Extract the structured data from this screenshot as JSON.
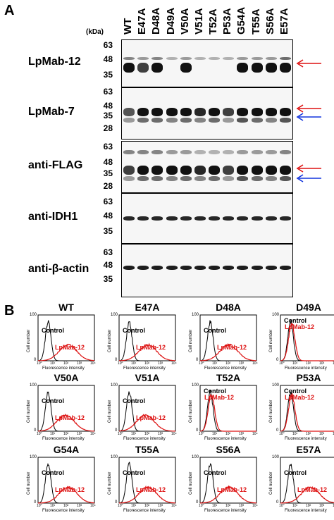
{
  "panel_a": {
    "letter": "A",
    "kda": "(kDa)",
    "lanes": [
      "WT",
      "E47A",
      "D48A",
      "D49A",
      "V50A",
      "V51A",
      "T52A",
      "P53A",
      "G54A",
      "T55A",
      "S56A",
      "E57A"
    ],
    "blots": [
      {
        "label": "LpMab-12",
        "markers": [
          "63",
          "48",
          "35"
        ]
      },
      {
        "label": "LpMab-7",
        "markers": [
          "63",
          "48",
          "35",
          "28"
        ]
      },
      {
        "label": "anti-FLAG",
        "markers": [
          "63",
          "48",
          "35",
          "28"
        ]
      },
      {
        "label": "anti-IDH1",
        "markers": [
          "63",
          "48",
          "35"
        ]
      },
      {
        "label": "anti-β-actin",
        "markers": [
          "63",
          "48",
          "35"
        ]
      }
    ]
  },
  "panel_b": {
    "letter": "B",
    "ylabel": "Cell number",
    "xlabel": "Fluorescence intensity",
    "control_label": "Control",
    "antibody_label": "LpMab-12",
    "ytick_labels": [
      "0",
      "100"
    ],
    "xtick_labels": [
      "10⁰",
      "10¹",
      "10²",
      "10³",
      "10⁴"
    ],
    "colors": {
      "control": "#000000",
      "antibody": "#dd1111",
      "arrow_red": "#dd1111",
      "arrow_blue": "#1133dd"
    },
    "plots": [
      {
        "title": "WT",
        "shift": 1.6
      },
      {
        "title": "E47A",
        "shift": 1.5
      },
      {
        "title": "D48A",
        "shift": 1.5
      },
      {
        "title": "D49A",
        "shift": 0.0
      },
      {
        "title": "V50A",
        "shift": 1.4
      },
      {
        "title": "V51A",
        "shift": 1.3
      },
      {
        "title": "T52A",
        "shift": 0.0
      },
      {
        "title": "P53A",
        "shift": 0.0
      },
      {
        "title": "G54A",
        "shift": 1.6
      },
      {
        "title": "T55A",
        "shift": 1.5
      },
      {
        "title": "S56A",
        "shift": 1.5
      },
      {
        "title": "E57A",
        "shift": 1.6
      }
    ]
  }
}
